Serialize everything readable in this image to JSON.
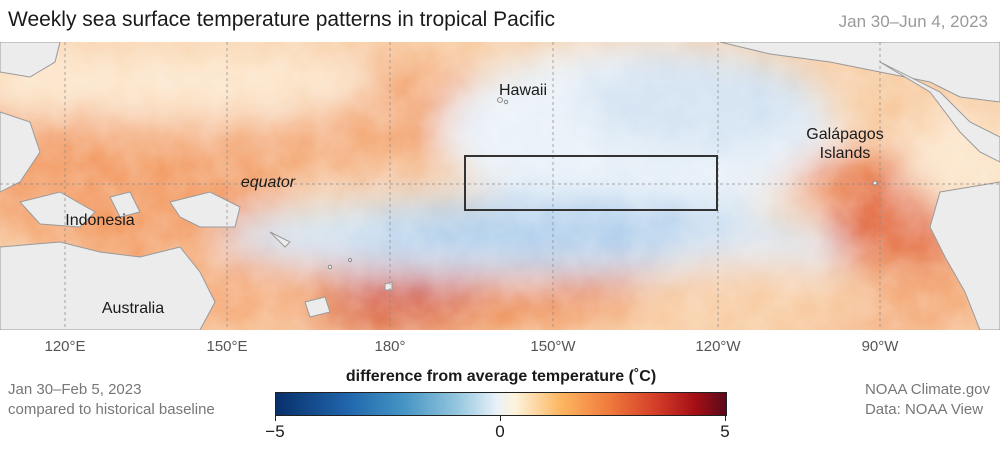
{
  "header": {
    "title": "Weekly sea surface temperature patterns in tropical Pacific",
    "date_range": "Jan 30–Jun 4, 2023"
  },
  "map": {
    "labels": {
      "hawaii": "Hawaii",
      "galapagos_line1": "Galápagos",
      "galapagos_line2": "Islands",
      "equator": "equator",
      "indonesia": "Indonesia",
      "australia": "Australia"
    },
    "longitude_labels": [
      "120°E",
      "150°E",
      "180°",
      "150°W",
      "120°W",
      "90°W"
    ],
    "nino34_box": {
      "lon_range": [
        "170°W",
        "120°W"
      ],
      "lat_range": [
        "5°N",
        "5°S"
      ]
    }
  },
  "footer": {
    "period": "Jan 30–Feb 5, 2023",
    "baseline": "compared to historical baseline",
    "credit": "NOAA Climate.gov",
    "source": "Data: NOAA View"
  },
  "legend": {
    "title": "difference from average temperature (˚C)",
    "min_label": "−5",
    "mid_label": "0",
    "max_label": "5",
    "colors": [
      "#08306b",
      "#2166ac",
      "#92c5de",
      "#fdf3dd",
      "#fdb863",
      "#d6402a",
      "#5a0a1a"
    ]
  }
}
